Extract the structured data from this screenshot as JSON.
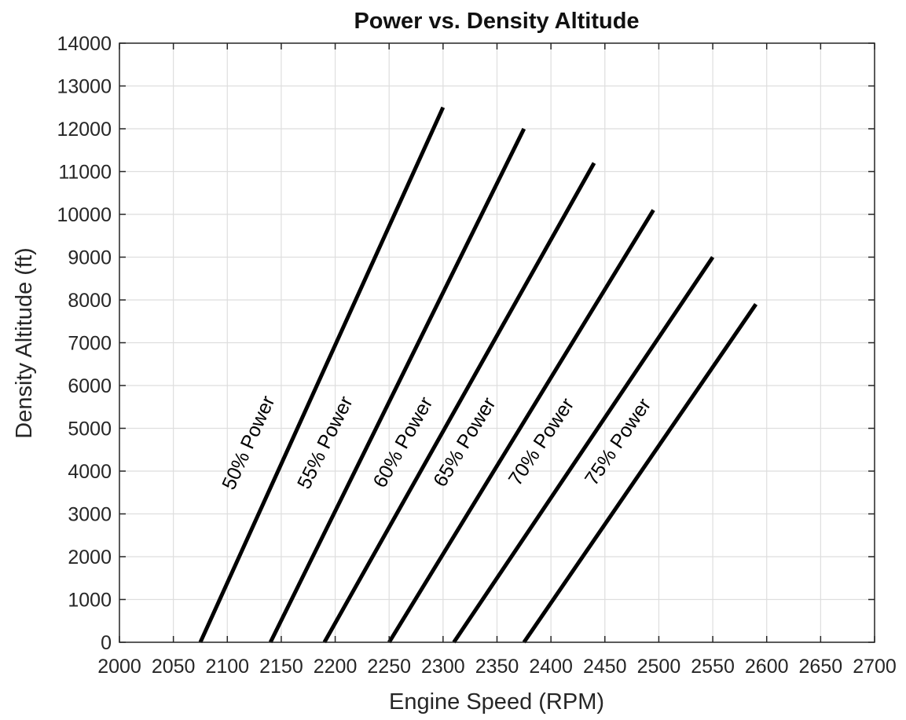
{
  "chart_data": {
    "type": "line",
    "title": "Power vs. Density Altitude",
    "xlabel": "Engine Speed (RPM)",
    "ylabel": "Density Altitude (ft)",
    "xlim": [
      2000,
      2700
    ],
    "ylim": [
      0,
      14000
    ],
    "x_ticks": [
      "2000",
      "2050",
      "2100",
      "2150",
      "2200",
      "2250",
      "2300",
      "2350",
      "2400",
      "2450",
      "2500",
      "2550",
      "2600",
      "2650",
      "2700"
    ],
    "y_ticks": [
      "0",
      "1000",
      "2000",
      "3000",
      "4000",
      "5000",
      "6000",
      "7000",
      "8000",
      "9000",
      "10000",
      "11000",
      "12000",
      "13000",
      "14000"
    ],
    "grid": true,
    "legend": "none",
    "series": [
      {
        "name": "50% Power",
        "x": [
          2075,
          2300
        ],
        "y": [
          0,
          12500
        ],
        "label_at": [
          2125,
          4600
        ]
      },
      {
        "name": "55% Power",
        "x": [
          2140,
          2375
        ],
        "y": [
          0,
          12000
        ],
        "label_at": [
          2196,
          4600
        ]
      },
      {
        "name": "60% Power",
        "x": [
          2190,
          2440
        ],
        "y": [
          0,
          11200
        ],
        "label_at": [
          2268,
          4600
        ]
      },
      {
        "name": "65% Power",
        "x": [
          2250,
          2495
        ],
        "y": [
          0,
          10100
        ],
        "label_at": [
          2325,
          4600
        ]
      },
      {
        "name": "70% Power",
        "x": [
          2310,
          2550
        ],
        "y": [
          0,
          9000
        ],
        "label_at": [
          2396,
          4600
        ]
      },
      {
        "name": "75% Power",
        "x": [
          2375,
          2590
        ],
        "y": [
          0,
          7900
        ],
        "label_at": [
          2467,
          4600
        ]
      }
    ]
  }
}
